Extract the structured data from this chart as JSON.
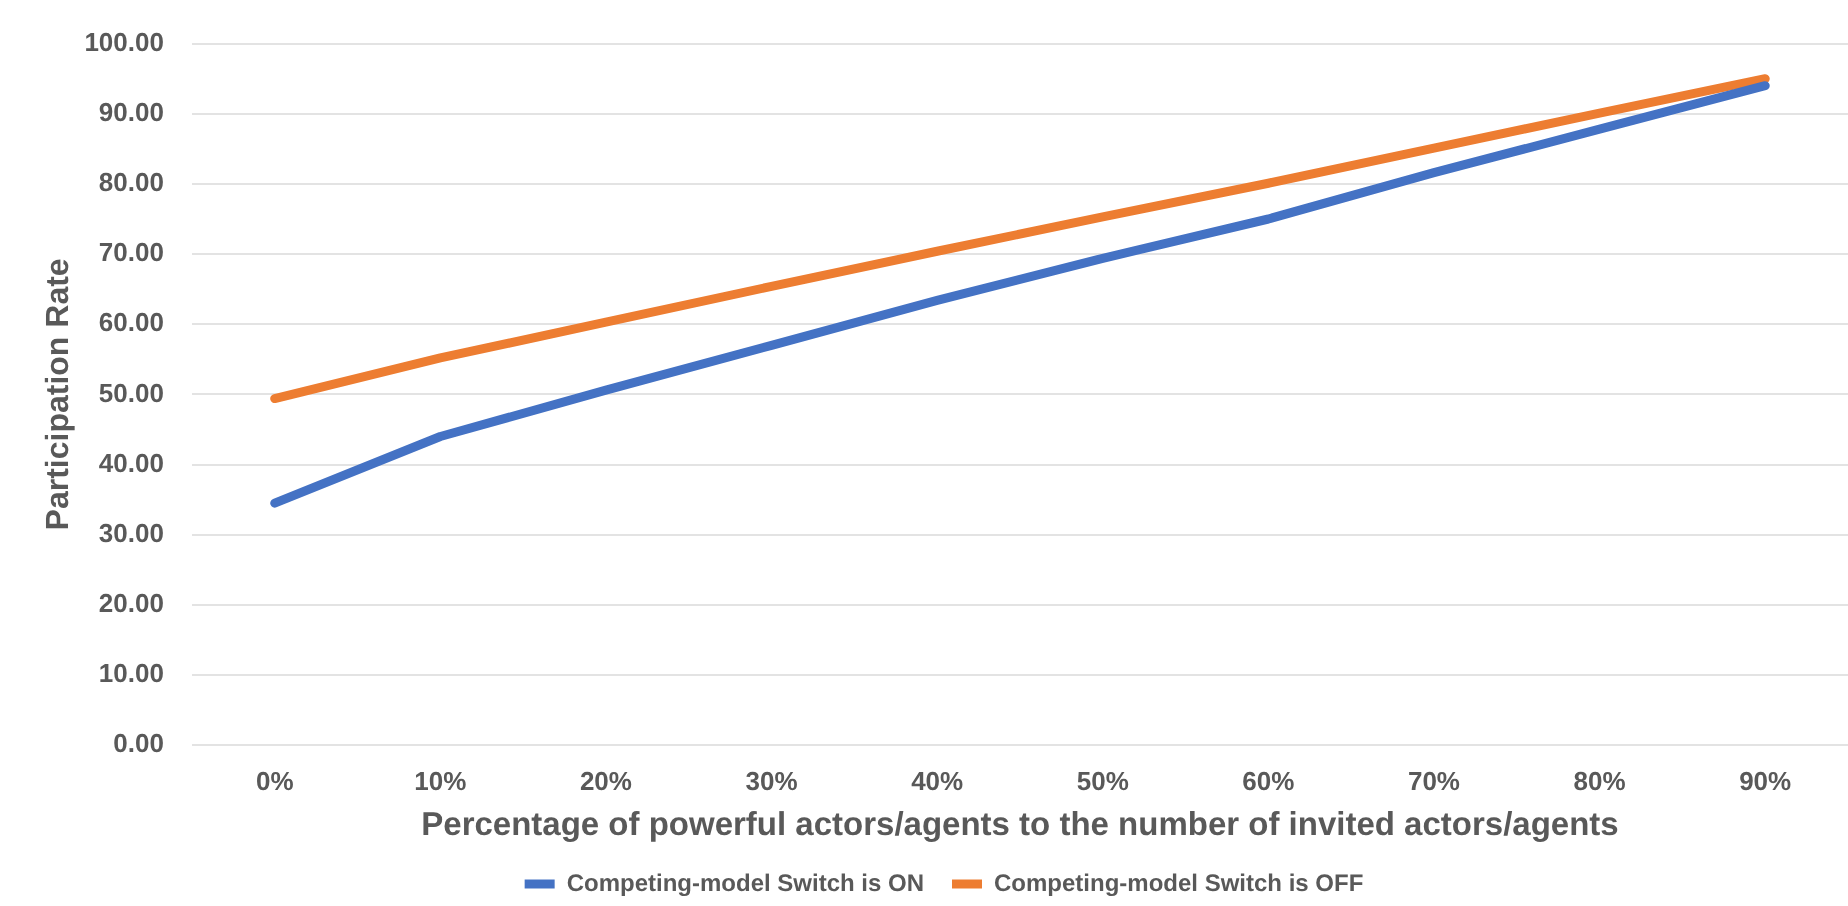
{
  "chart_data": {
    "type": "line",
    "xlabel": "Percentage of powerful actors/agents to the number of invited actors/agents",
    "ylabel": "Participation Rate",
    "categories": [
      "0%",
      "10%",
      "20%",
      "30%",
      "40%",
      "50%",
      "60%",
      "70%",
      "80%",
      "90%"
    ],
    "ylim": [
      0,
      100
    ],
    "yticks": [
      {
        "value": 0,
        "label": "0.00"
      },
      {
        "value": 10,
        "label": "10.00"
      },
      {
        "value": 20,
        "label": "20.00"
      },
      {
        "value": 30,
        "label": "30.00"
      },
      {
        "value": 40,
        "label": "40.00"
      },
      {
        "value": 50,
        "label": "50.00"
      },
      {
        "value": 60,
        "label": "60.00"
      },
      {
        "value": 70,
        "label": "70.00"
      },
      {
        "value": 80,
        "label": "80.00"
      },
      {
        "value": 90,
        "label": "90.00"
      },
      {
        "value": 100,
        "label": "100.00"
      }
    ],
    "grid": "y",
    "legend": "bottom",
    "marker": "none",
    "line_style": "solid",
    "series": [
      {
        "name": "Competing-model Switch is ON",
        "color": "#4472c4",
        "values": [
          34.5,
          44.0,
          50.6,
          57.0,
          63.4,
          69.4,
          75.0,
          81.6,
          87.8,
          94.0
        ]
      },
      {
        "name": "Competing-model Switch is OFF",
        "color": "#ed7d31",
        "values": [
          49.4,
          55.2,
          60.3,
          65.4,
          70.4,
          75.3,
          80.1,
          85.1,
          90.1,
          95.0
        ]
      }
    ]
  }
}
